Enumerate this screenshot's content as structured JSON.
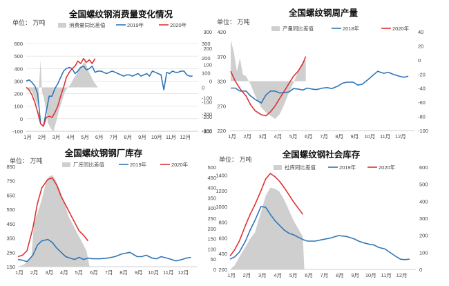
{
  "chart_data": [
    {
      "type": "area+line",
      "title": "全国螺纹钢消费量变化情况",
      "unit_label": "单位： 万吨",
      "legend": [
        "消费量同比差值",
        "2019年",
        "2020年"
      ],
      "categories": [
        "1月",
        "2月",
        "3月",
        "4月",
        "5月",
        "6月",
        "7月",
        "8月",
        "9月",
        "10月",
        "11月",
        "12月"
      ],
      "left_axis": {
        "ticks": [
          -100,
          0,
          100,
          200,
          300,
          400,
          500,
          600
        ],
        "ylim": [
          -100,
          600
        ]
      },
      "right_axis": {
        "ticks": [
          -300,
          -200,
          -100,
          0,
          100,
          200,
          300
        ],
        "ylim": [
          -300,
          300
        ],
        "side": "right"
      },
      "series": [
        {
          "name": "消费量同比差值",
          "style": "area",
          "axis": "right",
          "color": "#cfcfcf",
          "x": [
            1.0,
            1.2,
            1.4,
            1.6,
            1.8,
            2.0,
            2.1,
            2.2,
            2.4,
            2.5,
            2.7,
            2.9,
            3.1,
            3.3,
            3.5,
            3.7,
            3.9,
            4.1,
            4.3,
            4.5,
            4.7,
            4.9,
            5.1,
            5.3,
            5.5,
            5.7,
            6.0
          ],
          "values": [
            0,
            -10,
            -30,
            -80,
            -130,
            185,
            -30,
            -60,
            -160,
            -240,
            -280,
            -300,
            -230,
            -150,
            -90,
            -30,
            0,
            20,
            60,
            90,
            120,
            150,
            180,
            120,
            80,
            40,
            0
          ]
        },
        {
          "name": "2019年",
          "style": "line",
          "axis": "left",
          "color": "#2e75b6",
          "x": [
            1.0,
            1.2,
            1.4,
            1.6,
            1.8,
            2.0,
            2.2,
            2.4,
            2.6,
            2.8,
            3.0,
            3.2,
            3.4,
            3.6,
            3.8,
            4.0,
            4.2,
            4.4,
            4.6,
            4.8,
            5.0,
            5.2,
            5.4,
            5.6,
            5.8,
            6.0,
            6.2,
            6.4,
            6.6,
            6.8,
            7.0,
            7.2,
            7.4,
            7.6,
            7.8,
            8.0,
            8.2,
            8.4,
            8.6,
            8.8,
            9.0,
            9.2,
            9.4,
            9.6,
            9.8,
            10.0,
            10.2,
            10.4,
            10.6,
            10.8,
            11.0,
            11.2,
            11.4,
            11.6,
            11.8,
            12.0,
            12.2,
            12.4,
            12.6
          ],
          "values": [
            300,
            310,
            290,
            260,
            200,
            -40,
            -60,
            60,
            180,
            180,
            240,
            280,
            330,
            380,
            400,
            410,
            400,
            360,
            380,
            410,
            420,
            390,
            400,
            420,
            370,
            380,
            380,
            370,
            360,
            370,
            380,
            370,
            360,
            350,
            340,
            350,
            350,
            340,
            350,
            360,
            340,
            350,
            360,
            340,
            380,
            370,
            360,
            350,
            230,
            370,
            360,
            380,
            370,
            370,
            380,
            380,
            350,
            340,
            340
          ]
        },
        {
          "name": "2020年",
          "style": "line",
          "axis": "left",
          "color": "#e03030",
          "x": [
            1.0,
            1.2,
            1.4,
            1.6,
            1.8,
            2.0,
            2.2,
            2.4,
            2.6,
            2.8,
            3.0,
            3.2,
            3.4,
            3.6,
            3.8,
            4.0,
            4.2,
            4.4,
            4.6,
            4.8,
            5.0,
            5.2,
            5.4,
            5.6,
            5.8
          ],
          "values": [
            250,
            230,
            190,
            130,
            50,
            -40,
            -60,
            10,
            20,
            10,
            50,
            100,
            180,
            250,
            330,
            370,
            400,
            420,
            460,
            440,
            480,
            450,
            470,
            440,
            480
          ]
        }
      ],
      "grid": "horizontal"
    },
    {
      "type": "area+line",
      "title": "全国螺纹钢周产量",
      "unit_label": "单位： 万吨",
      "legend": [
        "产量同比差值",
        "2018年",
        "2020年"
      ],
      "categories": [
        "1月",
        "2月",
        "3月",
        "4月",
        "5月",
        "6月",
        "7月",
        "8月",
        "9月",
        "10月",
        "11月",
        "12月"
      ],
      "left_axis": {
        "ticks": [
          -300,
          -200,
          -100,
          0,
          100,
          200,
          300
        ],
        "ylim": [
          -300,
          300
        ]
      },
      "inner_axis": {
        "ticks": [
          220,
          270,
          320,
          370,
          420
        ],
        "ylim": [
          220,
          420
        ]
      },
      "right_axis": {
        "ticks": [
          -100,
          -80,
          -60,
          -40,
          -20,
          0,
          20,
          40
        ],
        "ylim": [
          -100,
          40
        ],
        "side": "right"
      },
      "series": [
        {
          "name": "产量同比差值",
          "style": "area",
          "axis": "left",
          "color": "#cfcfcf",
          "x": [
            1.0,
            1.2,
            1.4,
            1.6,
            1.8,
            2.0,
            2.3,
            2.6,
            3.0,
            3.3,
            3.6,
            3.9,
            4.2,
            4.5,
            4.8,
            5.1,
            5.4,
            5.7,
            5.9
          ],
          "values": [
            250,
            180,
            60,
            140,
            40,
            30,
            -20,
            -90,
            -160,
            -190,
            -210,
            -230,
            -200,
            -140,
            -70,
            -10,
            60,
            120,
            130
          ]
        },
        {
          "name": "2018年",
          "style": "line",
          "axis": "inner",
          "color": "#2e75b6",
          "x": [
            1.0,
            1.3,
            1.6,
            2.0,
            2.3,
            2.6,
            3.0,
            3.3,
            3.6,
            3.9,
            4.2,
            4.5,
            4.8,
            5.1,
            5.4,
            5.7,
            6.0,
            6.3,
            6.6,
            7.0,
            7.3,
            7.6,
            8.0,
            8.3,
            8.6,
            9.0,
            9.3,
            9.6,
            10.0,
            10.3,
            10.6,
            11.0,
            11.3,
            11.6,
            12.0,
            12.3,
            12.6
          ],
          "values": [
            306,
            306,
            300,
            300,
            290,
            283,
            276,
            292,
            300,
            300,
            296,
            297,
            298,
            305,
            304,
            302,
            306,
            304,
            303,
            306,
            307,
            305,
            310,
            316,
            318,
            318,
            312,
            314,
            324,
            332,
            340,
            336,
            338,
            334,
            330,
            328,
            330
          ]
        },
        {
          "name": "2020年",
          "style": "line",
          "axis": "inner",
          "color": "#e03030",
          "x": [
            1.0,
            1.3,
            1.6,
            2.0,
            2.3,
            2.6,
            3.0,
            3.3,
            3.6,
            3.9,
            4.2,
            4.5,
            4.8,
            5.1,
            5.4,
            5.7,
            5.9
          ],
          "values": [
            340,
            320,
            305,
            290,
            272,
            260,
            252,
            250,
            258,
            270,
            285,
            300,
            315,
            330,
            340,
            355,
            370
          ]
        }
      ],
      "grid": "none"
    },
    {
      "type": "area+line",
      "title": "全国螺纹钢钢厂库存",
      "unit_label": "单位： 万吨",
      "legend": [
        "厂库同比差值",
        "2019年",
        "2020年"
      ],
      "categories": [
        "1月",
        "2月",
        "3月",
        "4月",
        "5月",
        "6月",
        "7月",
        "8月",
        "9月",
        "10月",
        "11月",
        "12月"
      ],
      "left_axis": {
        "ticks": [
          150,
          250,
          350,
          450,
          550,
          650,
          750,
          850
        ],
        "ylim": [
          150,
          850
        ]
      },
      "series": [
        {
          "name": "厂库同比差值",
          "style": "area",
          "axis": "left",
          "color": "#cfcfcf",
          "x": [
            1.0,
            1.3,
            1.6,
            1.9,
            2.1,
            2.3,
            2.6,
            2.9,
            3.1,
            3.3,
            3.5,
            3.8,
            4.1,
            4.4,
            4.7,
            5.0,
            5.3,
            5.6,
            5.8
          ],
          "values": [
            150,
            160,
            180,
            220,
            480,
            520,
            620,
            750,
            780,
            790,
            760,
            690,
            600,
            500,
            440,
            380,
            320,
            260,
            150
          ]
        },
        {
          "name": "2019年",
          "style": "line",
          "axis": "left",
          "color": "#2e75b6",
          "x": [
            1.0,
            1.3,
            1.6,
            2.0,
            2.3,
            2.6,
            3.0,
            3.3,
            3.6,
            3.9,
            4.2,
            4.5,
            4.8,
            5.1,
            5.4,
            5.7,
            6.0,
            6.5,
            7.0,
            7.5,
            8.0,
            8.5,
            9.0,
            9.3,
            9.6,
            10.0,
            10.3,
            10.6,
            11.0,
            11.3,
            11.6,
            12.0,
            12.3,
            12.6
          ],
          "values": [
            200,
            195,
            185,
            230,
            300,
            330,
            340,
            320,
            280,
            250,
            220,
            210,
            200,
            215,
            200,
            210,
            205,
            205,
            210,
            220,
            240,
            250,
            220,
            220,
            230,
            210,
            205,
            220,
            210,
            200,
            190,
            200,
            210,
            215
          ]
        },
        {
          "name": "2020年",
          "style": "line",
          "axis": "left",
          "color": "#e03030",
          "x": [
            1.0,
            1.3,
            1.6,
            2.0,
            2.3,
            2.6,
            3.0,
            3.3,
            3.6,
            3.9,
            4.2,
            4.5,
            4.8,
            5.1,
            5.4,
            5.7
          ],
          "values": [
            220,
            230,
            260,
            420,
            590,
            700,
            760,
            770,
            720,
            640,
            580,
            520,
            460,
            400,
            370,
            330
          ]
        }
      ],
      "grid": "none"
    },
    {
      "type": "area+line",
      "title": "全国螺纹钢社会库存",
      "unit_label": "单位： 万吨",
      "legend": [
        "社库同比差值",
        "2019年",
        "2020年"
      ],
      "categories": [
        "1月",
        "2月",
        "3月",
        "4月",
        "5月",
        "6月",
        "7月",
        "8月",
        "9月",
        "10月",
        "11月",
        "12月"
      ],
      "left_axis": {
        "ticks": [
          0,
          50,
          100,
          150,
          200,
          250,
          300,
          350,
          400,
          450,
          500
        ],
        "ylim": [
          0,
          500
        ]
      },
      "inner_axis": {
        "ticks": [
          200,
          400,
          600,
          800,
          1000,
          1200,
          1400
        ],
        "ylim": [
          200,
          1500
        ]
      },
      "right_axis": {
        "ticks": [
          0,
          100,
          200,
          300,
          400,
          500,
          600
        ],
        "ylim": [
          0,
          600
        ],
        "side": "right"
      },
      "series": [
        {
          "name": "社库同比差值",
          "style": "area",
          "axis": "left",
          "color": "#cfcfcf",
          "x": [
            1.0,
            1.3,
            1.6,
            2.0,
            2.3,
            2.6,
            3.0,
            3.3,
            3.6,
            3.9,
            4.2,
            4.5,
            4.8,
            5.1,
            5.4,
            5.7,
            5.8
          ],
          "values": [
            0,
            20,
            60,
            110,
            150,
            180,
            280,
            360,
            400,
            395,
            380,
            340,
            290,
            240,
            200,
            160,
            0
          ]
        },
        {
          "name": "2019年",
          "style": "line",
          "axis": "inner",
          "color": "#2e75b6",
          "x": [
            1.0,
            1.3,
            1.6,
            2.0,
            2.3,
            2.6,
            3.0,
            3.3,
            3.6,
            3.9,
            4.2,
            4.5,
            4.8,
            5.1,
            5.4,
            5.7,
            6.0,
            6.5,
            7.0,
            7.5,
            8.0,
            8.5,
            9.0,
            9.3,
            9.6,
            10.0,
            10.3,
            10.6,
            11.0,
            11.3,
            11.6,
            12.0,
            12.3,
            12.6
          ],
          "values": [
            330,
            360,
            420,
            560,
            700,
            820,
            1000,
            990,
            900,
            820,
            760,
            700,
            660,
            640,
            610,
            580,
            560,
            560,
            580,
            600,
            630,
            620,
            590,
            560,
            540,
            520,
            510,
            480,
            460,
            420,
            380,
            330,
            325,
            330
          ]
        },
        {
          "name": "2020年",
          "style": "line",
          "axis": "inner",
          "color": "#e03030",
          "x": [
            1.0,
            1.3,
            1.6,
            2.0,
            2.3,
            2.6,
            3.0,
            3.3,
            3.6,
            3.9,
            4.2,
            4.5,
            4.8,
            5.1,
            5.4,
            5.7
          ],
          "values": [
            370,
            450,
            560,
            760,
            900,
            1020,
            1200,
            1350,
            1420,
            1380,
            1320,
            1240,
            1150,
            1060,
            980,
            900
          ]
        }
      ],
      "grid": "none"
    }
  ]
}
